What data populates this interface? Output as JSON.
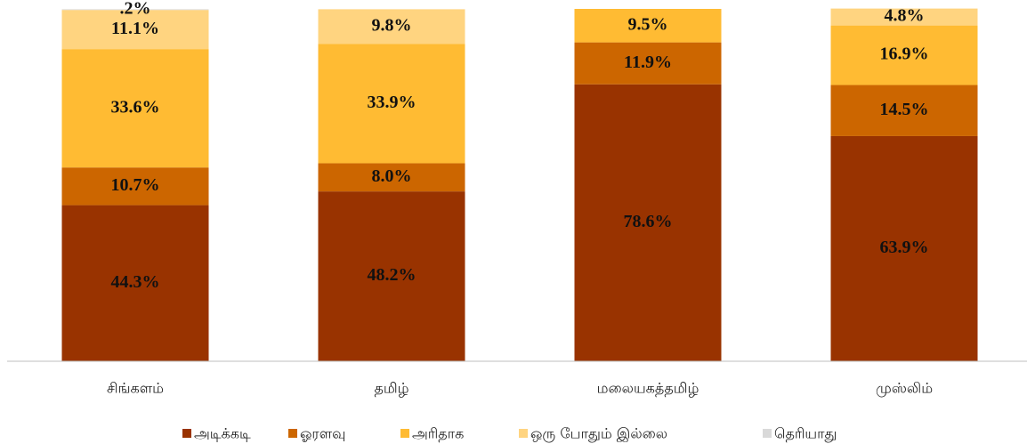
{
  "chart_data": {
    "type": "stacked_bar",
    "categories": [
      "சிங்களம்",
      "தமிழ்",
      "மலையகத்தமிழ்",
      "முஸ்லிம்"
    ],
    "ylim": [
      0,
      100
    ],
    "series": [
      {
        "name": "அடிக்கடி",
        "color": "#993300",
        "values": [
          44.3,
          48.2,
          78.6,
          63.9
        ],
        "value_labels": [
          "44.3%",
          "48.2%",
          "78.6%",
          "63.9%"
        ]
      },
      {
        "name": "ஓரளவு",
        "color": "#cc6600",
        "values": [
          10.7,
          8.0,
          11.9,
          14.5
        ],
        "value_labels": [
          "10.7%",
          "8.0%",
          "11.9%",
          "14.5%"
        ]
      },
      {
        "name": "அரிதாக",
        "color": "#ffbb33",
        "values": [
          33.6,
          33.9,
          9.5,
          16.9
        ],
        "value_labels": [
          "33.6%",
          "33.9%",
          "9.5%",
          "16.9%"
        ]
      },
      {
        "name": "ஒரு போதும் இல்லை",
        "color": "#ffd480",
        "values": [
          11.1,
          9.8,
          null,
          4.8
        ],
        "value_labels": [
          "11.1%",
          "9.8%",
          null,
          "4.8%"
        ]
      },
      {
        "name": "தெரியாது",
        "color": "#d9d9d9",
        "values": [
          0.2,
          null,
          null,
          null
        ],
        "value_labels": [
          ".2%",
          null,
          null,
          null
        ]
      }
    ]
  }
}
